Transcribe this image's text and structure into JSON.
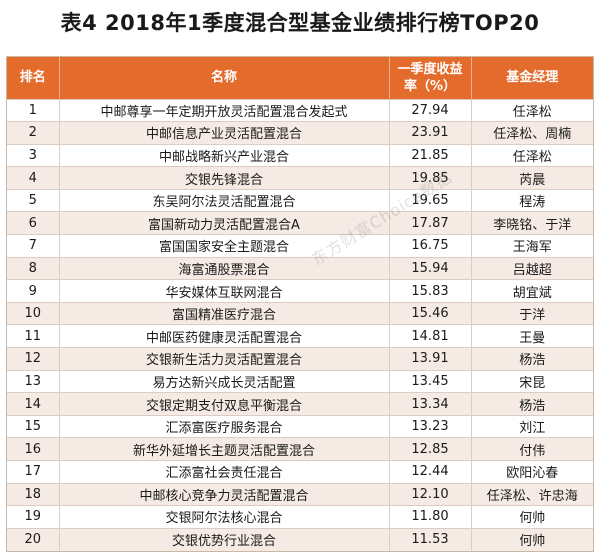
{
  "title": "表4 2018年1季度混合型基金业绩排行榜TOP20",
  "headers": {
    "rank": "排名",
    "name": "名称",
    "return_line1": "一季度收益",
    "return_line2": "率（%）",
    "manager": "基金经理"
  },
  "rows": [
    {
      "rank": "1",
      "name": "中邮尊享一年定期开放灵活配置混合发起式",
      "return": "27.94",
      "manager": "任泽松"
    },
    {
      "rank": "2",
      "name": "中邮信息产业灵活配置混合",
      "return": "23.91",
      "manager": "任泽松、周楠"
    },
    {
      "rank": "3",
      "name": "中邮战略新兴产业混合",
      "return": "21.85",
      "manager": "任泽松"
    },
    {
      "rank": "4",
      "name": "交银先锋混合",
      "return": "19.85",
      "manager": "芮晨"
    },
    {
      "rank": "5",
      "name": "东吴阿尔法灵活配置混合",
      "return": "19.65",
      "manager": "程涛"
    },
    {
      "rank": "6",
      "name": "富国新动力灵活配置混合A",
      "return": "17.87",
      "manager": "李晓铭、于洋"
    },
    {
      "rank": "7",
      "name": "富国国家安全主题混合",
      "return": "16.75",
      "manager": "王海军"
    },
    {
      "rank": "8",
      "name": "海富通股票混合",
      "return": "15.94",
      "manager": "吕越超"
    },
    {
      "rank": "9",
      "name": "华安媒体互联网混合",
      "return": "15.83",
      "manager": "胡宜斌"
    },
    {
      "rank": "10",
      "name": "富国精准医疗混合",
      "return": "15.46",
      "manager": "于洋"
    },
    {
      "rank": "11",
      "name": "中邮医药健康灵活配置混合",
      "return": "14.81",
      "manager": "王曼"
    },
    {
      "rank": "12",
      "name": "交银新生活力灵活配置混合",
      "return": "13.91",
      "manager": "杨浩"
    },
    {
      "rank": "13",
      "name": "易方达新兴成长灵活配置",
      "return": "13.45",
      "manager": "宋昆"
    },
    {
      "rank": "14",
      "name": "交银定期支付双息平衡混合",
      "return": "13.34",
      "manager": "杨浩"
    },
    {
      "rank": "15",
      "name": "汇添富医疗服务混合",
      "return": "13.23",
      "manager": "刘江"
    },
    {
      "rank": "16",
      "name": "新华外延增长主题灵活配置混合",
      "return": "12.85",
      "manager": "付伟"
    },
    {
      "rank": "17",
      "name": "汇添富社会责任混合",
      "return": "12.44",
      "manager": "欧阳沁春"
    },
    {
      "rank": "18",
      "name": "中邮核心竞争力灵活配置混合",
      "return": "12.10",
      "manager": "任泽松、许忠海"
    },
    {
      "rank": "19",
      "name": "交银阿尔法核心混合",
      "return": "11.80",
      "manager": "何帅"
    },
    {
      "rank": "20",
      "name": "交银优势行业混合",
      "return": "11.53",
      "manager": "何帅"
    }
  ],
  "watermark": "东方财富Choice数据",
  "colors": {
    "header_bg": "#e36b2b",
    "header_text": "#ffffff",
    "row_alt": "#f5eae4"
  }
}
